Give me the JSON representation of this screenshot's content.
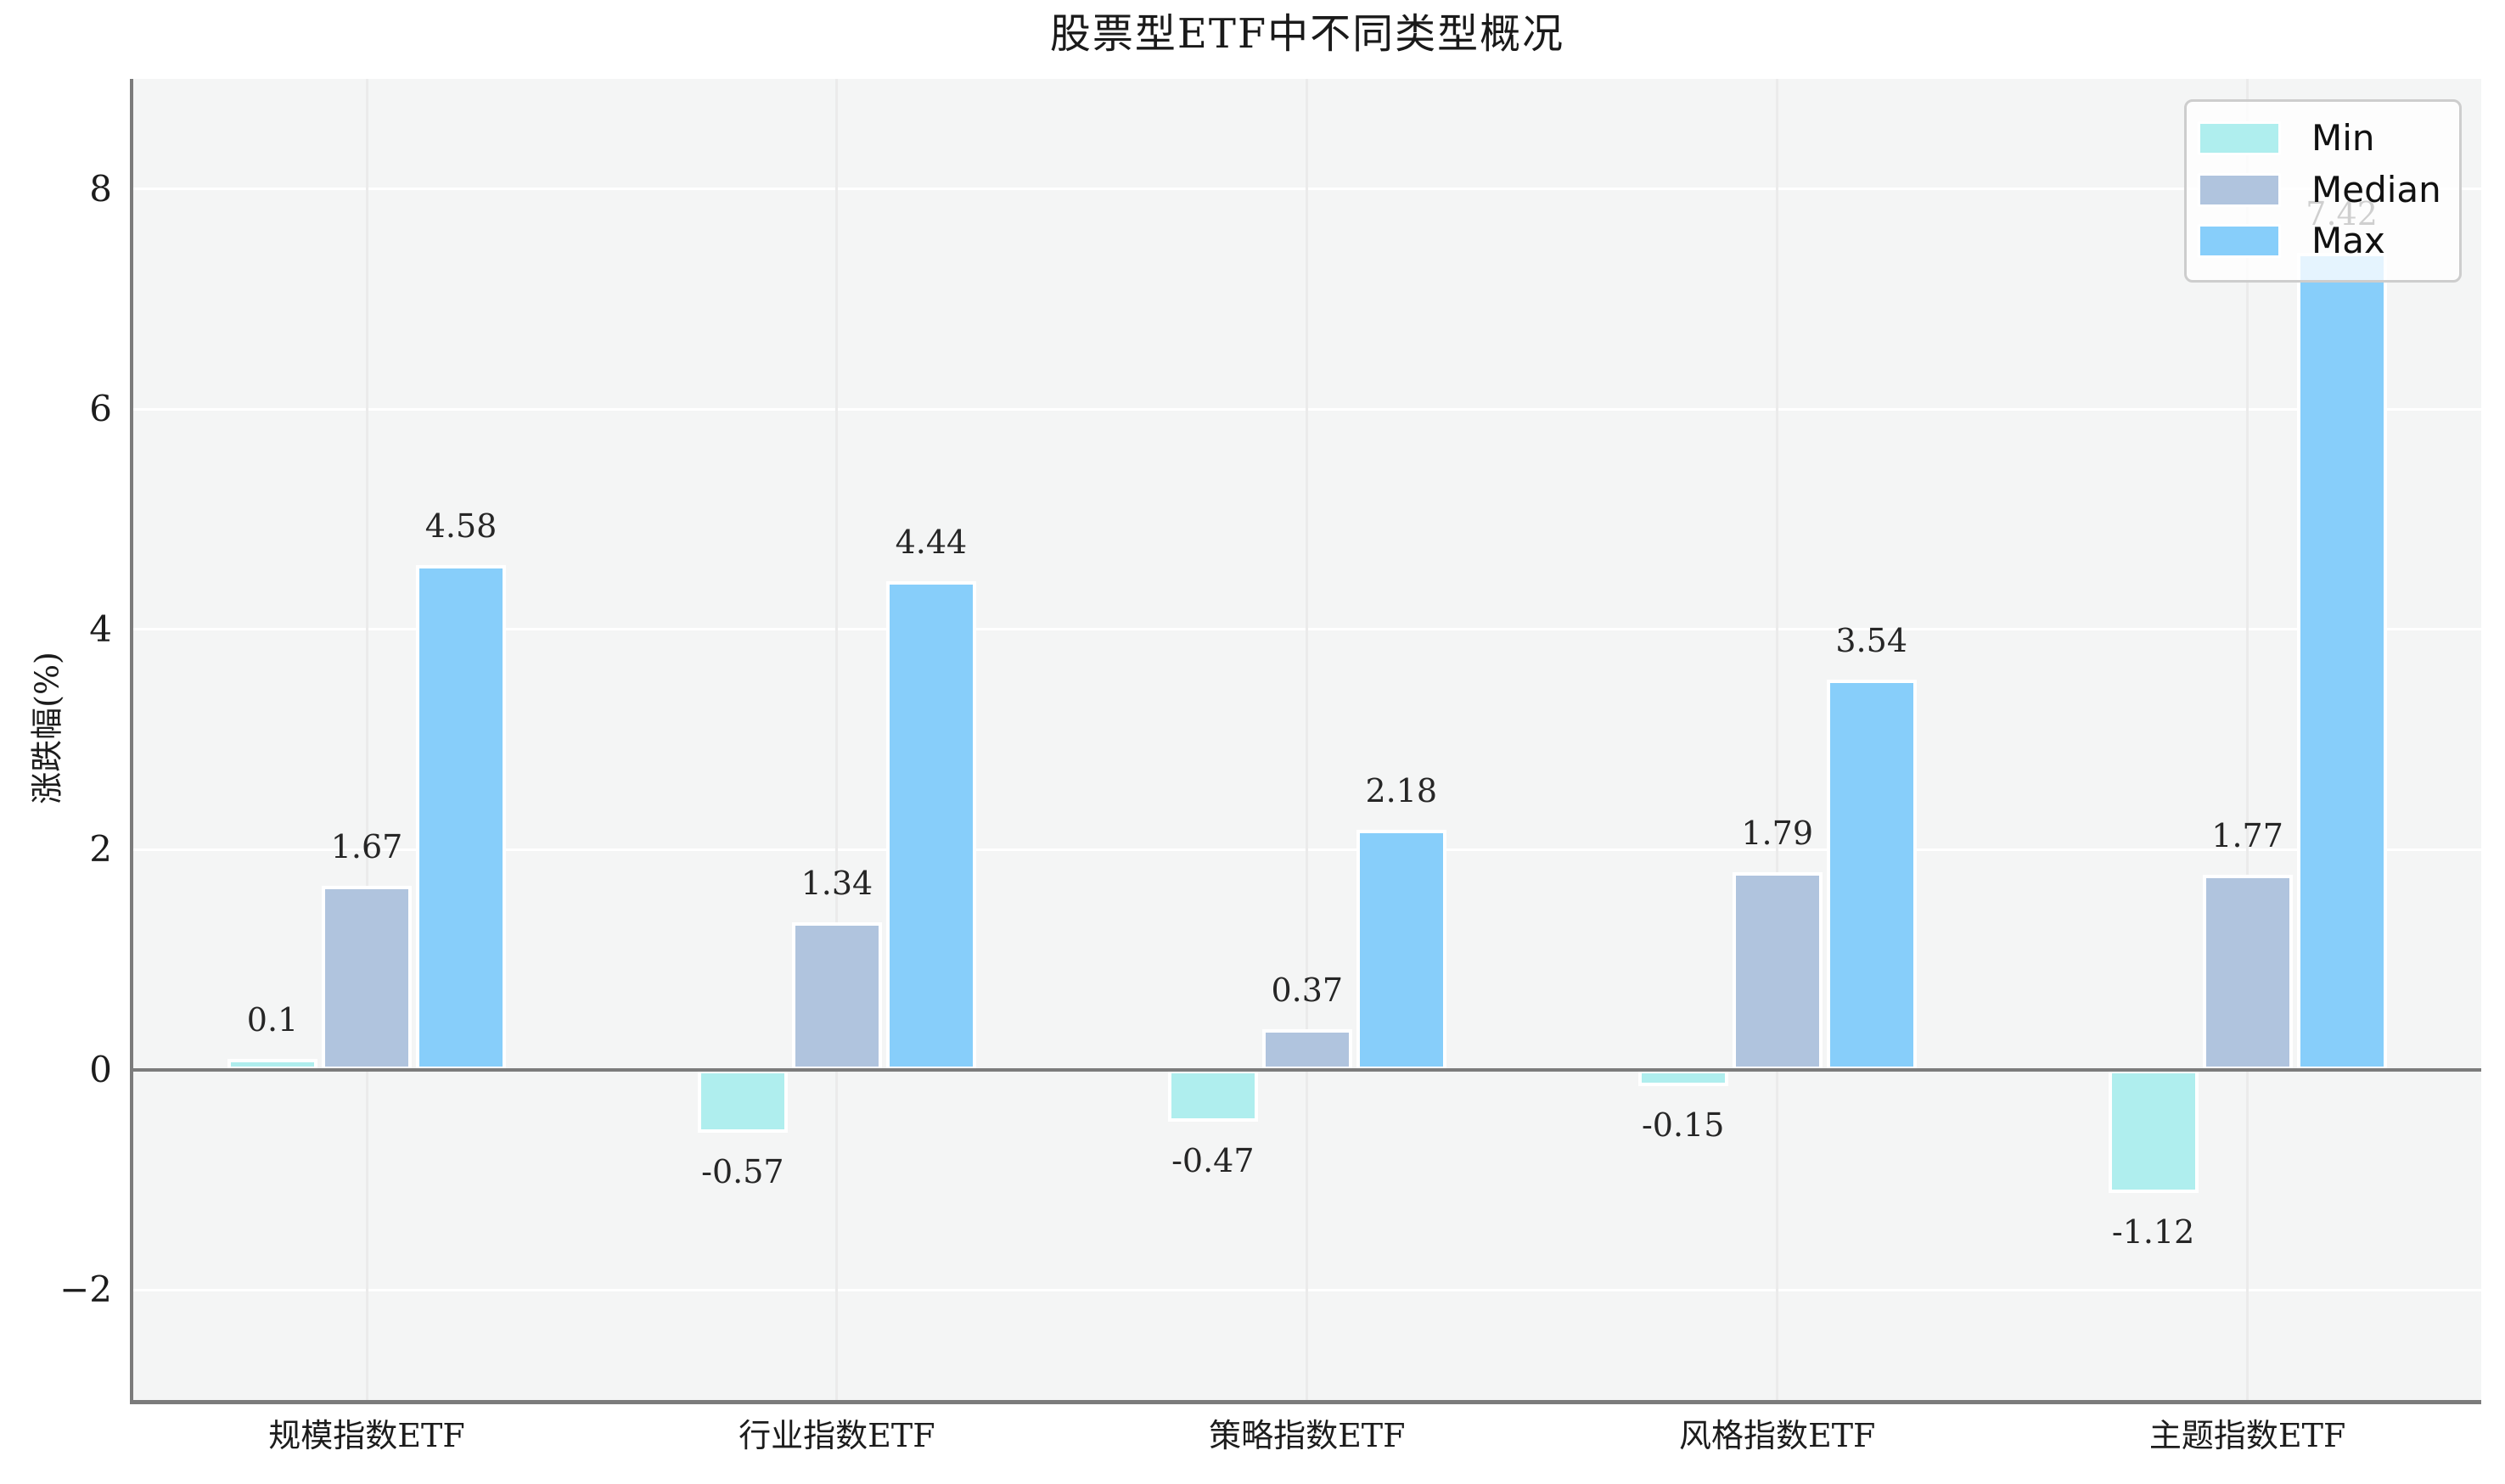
{
  "title": "股票型ETF中不同类型概况",
  "y_axis_label": "涨跌幅(%)",
  "legend": {
    "items": [
      {
        "label": "Min",
        "color": "#afeeee"
      },
      {
        "label": "Median",
        "color": "#b0c4de"
      },
      {
        "label": "Max",
        "color": "#87cefa"
      }
    ]
  },
  "colors": {
    "plot_background": "#f4f5f5",
    "figure_background": "#ffffff",
    "grid_horizontal": "#ffffff",
    "grid_vertical": "#ebebeb",
    "axis_spine": "#7b7b7b",
    "zero_line": "#7c7c7c",
    "bar_edge": "#ffffff",
    "text": "#1c1c1c"
  },
  "chart_data": {
    "type": "bar",
    "title": "股票型ETF中不同类型概况",
    "xlabel": "",
    "ylabel": "涨跌幅(%)",
    "categories": [
      "规模指数ETF",
      "行业指数ETF",
      "策略指数ETF",
      "风格指数ETF",
      "主题指数ETF"
    ],
    "series": [
      {
        "name": "Min",
        "color": "#afeeee",
        "values": [
          0.1,
          -0.57,
          -0.47,
          -0.15,
          -1.12
        ],
        "labels": [
          "0.1",
          "-0.57",
          "-0.47",
          "-0.15",
          "-1.12"
        ]
      },
      {
        "name": "Median",
        "color": "#b0c4de",
        "values": [
          1.67,
          1.34,
          0.37,
          1.79,
          1.77
        ],
        "labels": [
          "1.67",
          "1.34",
          "0.37",
          "1.79",
          "1.77"
        ]
      },
      {
        "name": "Max",
        "color": "#87cefa",
        "values": [
          4.58,
          4.44,
          2.18,
          3.54,
          7.42
        ],
        "labels": [
          "4.58",
          "4.44",
          "2.18",
          "3.54",
          "7.42"
        ]
      }
    ],
    "yticks": [
      -2,
      0,
      2,
      4,
      6,
      8
    ],
    "ytick_labels": [
      "−2",
      "0",
      "2",
      "4",
      "6",
      "8"
    ],
    "ylim": [
      -3,
      9
    ],
    "grid": true,
    "value_labels": true,
    "legend_position": "upper right"
  }
}
